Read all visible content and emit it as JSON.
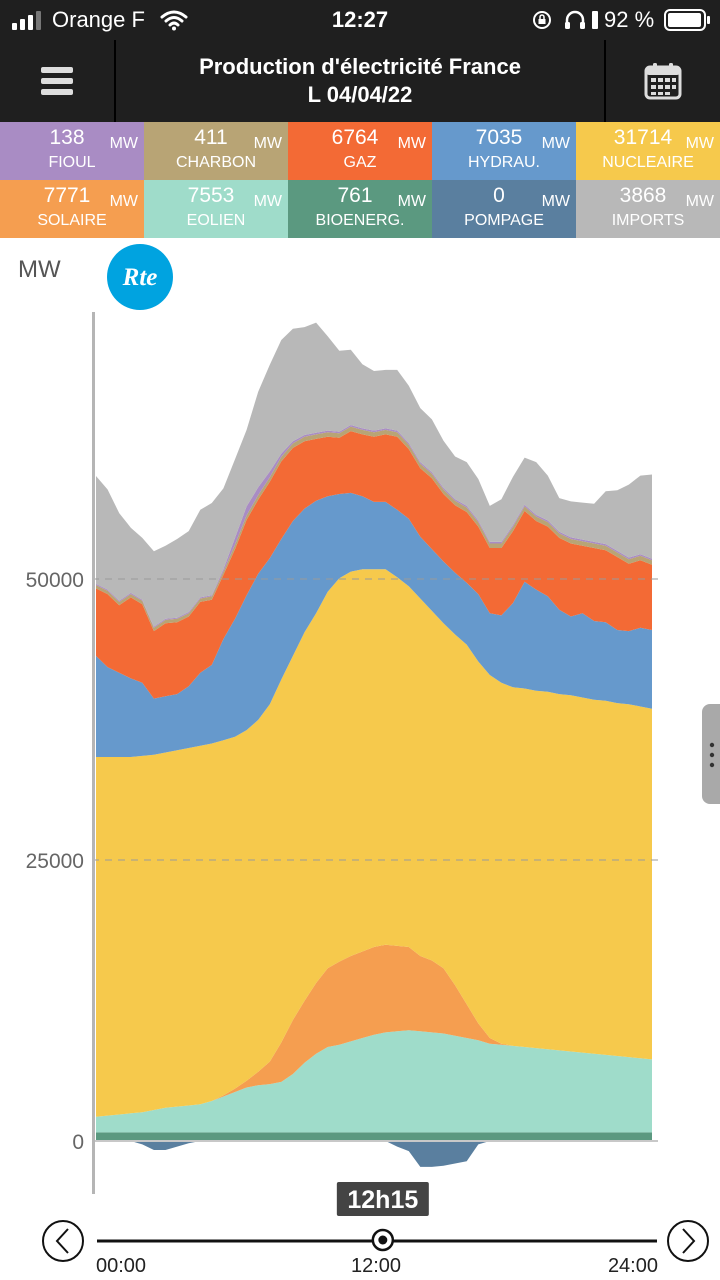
{
  "status_bar": {
    "carrier": "Orange F",
    "time": "12:27",
    "battery": "92 %"
  },
  "header": {
    "title_line1": "Production d'électricité France",
    "title_line2": "L 04/04/22"
  },
  "tiles": [
    {
      "value": "138",
      "unit": "MW",
      "label": "FIOUL",
      "color": "#a98cc4"
    },
    {
      "value": "411",
      "unit": "MW",
      "label": "CHARBON",
      "color": "#b8a475"
    },
    {
      "value": "6764",
      "unit": "MW",
      "label": "GAZ",
      "color": "#f36a35"
    },
    {
      "value": "7035",
      "unit": "MW",
      "label": "HYDRAU.",
      "color": "#6699cc"
    },
    {
      "value": "31714",
      "unit": "MW",
      "label": "NUCLEAIRE",
      "color": "#f6c94c"
    },
    {
      "value": "7771",
      "unit": "MW",
      "label": "SOLAIRE",
      "color": "#f59e50"
    },
    {
      "value": "7553",
      "unit": "MW",
      "label": "EOLIEN",
      "color": "#9fdcca"
    },
    {
      "value": "761",
      "unit": "MW",
      "label": "BIOENERG.",
      "color": "#5b9980"
    },
    {
      "value": "0",
      "unit": "MW",
      "label": "POMPAGE",
      "color": "#5a7f9f"
    },
    {
      "value": "3868",
      "unit": "MW",
      "label": "IMPORTS",
      "color": "#b8b8b8"
    }
  ],
  "logo_text": "Rte",
  "chart_data": {
    "type": "area",
    "ylabel": "MW",
    "yticks": [
      0,
      25000,
      50000
    ],
    "ylim": [
      -3000,
      73000
    ],
    "x_hours": [
      0,
      0.5,
      1,
      1.5,
      2,
      2.5,
      3,
      3.5,
      4,
      4.5,
      5,
      5.5,
      6,
      6.5,
      7,
      7.5,
      8,
      8.5,
      9,
      9.5,
      10,
      10.5,
      11,
      11.5,
      12,
      12.5,
      13,
      13.5,
      14,
      14.5,
      15,
      15.5,
      16,
      16.5,
      17,
      17.5,
      18,
      18.5,
      19,
      19.5,
      20,
      20.5,
      21,
      21.5,
      22,
      22.5,
      23,
      23.5,
      24
    ],
    "pompage_negative": [
      0,
      0,
      0,
      0,
      -300,
      -800,
      -800,
      -500,
      -200,
      0,
      0,
      0,
      0,
      0,
      0,
      0,
      0,
      0,
      0,
      0,
      0,
      0,
      0,
      0,
      0,
      0,
      -500,
      -900,
      -2300,
      -2300,
      -2200,
      -2000,
      -1800,
      -300,
      0,
      0,
      0,
      0,
      0,
      0,
      0,
      0,
      0,
      0,
      0,
      0,
      0,
      0,
      0
    ],
    "series": [
      {
        "name": "BIOENERG.",
        "color": "#5b9980",
        "values": [
          761,
          761,
          761,
          761,
          761,
          761,
          761,
          761,
          761,
          761,
          761,
          761,
          761,
          761,
          761,
          761,
          761,
          761,
          761,
          761,
          761,
          761,
          761,
          761,
          761,
          761,
          761,
          761,
          761,
          761,
          761,
          761,
          761,
          761,
          761,
          761,
          761,
          761,
          761,
          761,
          761,
          761,
          761,
          761,
          761,
          761,
          761,
          761,
          761
        ]
      },
      {
        "name": "EOLIEN",
        "color": "#9fdcca",
        "values": [
          1400,
          1500,
          1600,
          1700,
          1800,
          2000,
          2200,
          2300,
          2400,
          2500,
          2800,
          3200,
          3600,
          4000,
          4200,
          4300,
          4500,
          5200,
          6200,
          7000,
          7600,
          7800,
          8100,
          8400,
          8700,
          8900,
          9000,
          9100,
          9000,
          8900,
          8800,
          8600,
          8400,
          8200,
          7900,
          7800,
          7700,
          7600,
          7500,
          7400,
          7300,
          7200,
          7100,
          7000,
          6900,
          6800,
          6700,
          6600,
          6500
        ]
      },
      {
        "name": "SOLAIRE",
        "color": "#f59e50",
        "values": [
          0,
          0,
          0,
          0,
          0,
          0,
          0,
          0,
          0,
          0,
          0,
          100,
          300,
          600,
          1200,
          2000,
          3500,
          4800,
          5500,
          6300,
          7000,
          7400,
          7600,
          7700,
          7800,
          7800,
          7600,
          7400,
          6700,
          6400,
          5800,
          4500,
          3000,
          1500,
          500,
          100,
          0,
          0,
          0,
          0,
          0,
          0,
          0,
          0,
          0,
          0,
          0,
          0,
          0
        ]
      },
      {
        "name": "NUCLEAIRE",
        "color": "#f6c94c",
        "values": [
          32000,
          31900,
          31800,
          31700,
          31700,
          31600,
          31600,
          31700,
          31800,
          31900,
          31800,
          31600,
          31300,
          31200,
          31300,
          31800,
          32300,
          32400,
          32800,
          32900,
          33500,
          34100,
          34200,
          34000,
          33600,
          33400,
          32800,
          32100,
          31800,
          31100,
          30700,
          31200,
          32000,
          32200,
          32300,
          32100,
          31900,
          31900,
          31800,
          31800,
          31700,
          31700,
          31600,
          31500,
          31500,
          31400,
          31400,
          31300,
          31200
        ]
      },
      {
        "name": "HYDRAU.",
        "color": "#6699cc",
        "values": [
          9000,
          8000,
          7500,
          7000,
          6500,
          5000,
          5000,
          5000,
          5500,
          6500,
          7000,
          9000,
          10500,
          12000,
          13000,
          13000,
          12500,
          12000,
          11000,
          10000,
          8500,
          7500,
          7000,
          6500,
          6000,
          6000,
          6000,
          6000,
          5500,
          5500,
          5500,
          5500,
          5500,
          6000,
          5500,
          6000,
          7500,
          9500,
          9000,
          8500,
          7500,
          7000,
          7500,
          7000,
          7000,
          6500,
          6500,
          7000,
          7000
        ]
      },
      {
        "name": "GAZ",
        "color": "#f36a35",
        "values": [
          6000,
          6500,
          6000,
          7200,
          7000,
          6000,
          6500,
          6400,
          6200,
          6300,
          5800,
          5700,
          6200,
          6700,
          6600,
          6800,
          6900,
          6500,
          6000,
          5500,
          5300,
          5000,
          5500,
          5500,
          5800,
          6000,
          6500,
          6200,
          6100,
          6300,
          6000,
          6000,
          6300,
          6000,
          5800,
          6000,
          6400,
          6300,
          6100,
          6200,
          6400,
          6500,
          6000,
          6500,
          6400,
          6500,
          6000,
          6000,
          5800
        ]
      },
      {
        "name": "CHARBON",
        "color": "#b8a475",
        "values": [
          300,
          300,
          300,
          300,
          300,
          300,
          300,
          300,
          300,
          300,
          300,
          300,
          400,
          400,
          400,
          400,
          400,
          400,
          400,
          400,
          400,
          400,
          400,
          400,
          400,
          400,
          400,
          400,
          400,
          400,
          400,
          400,
          400,
          400,
          400,
          400,
          400,
          400,
          400,
          400,
          400,
          400,
          400,
          400,
          400,
          400,
          400,
          400,
          400
        ]
      },
      {
        "name": "FIOUL",
        "color": "#a98cc4",
        "values": [
          100,
          100,
          100,
          100,
          100,
          100,
          100,
          100,
          100,
          100,
          100,
          200,
          600,
          800,
          700,
          500,
          300,
          200,
          150,
          150,
          140,
          140,
          140,
          140,
          140,
          140,
          140,
          140,
          140,
          140,
          140,
          140,
          140,
          140,
          140,
          140,
          140,
          140,
          140,
          140,
          140,
          140,
          140,
          140,
          140,
          140,
          140,
          140,
          140
        ]
      },
      {
        "name": "IMPORTS",
        "color": "#b8b8b8",
        "values": [
          9600,
          8900,
          7800,
          5800,
          5500,
          6700,
          6500,
          7000,
          7200,
          7800,
          8200,
          7200,
          7000,
          6800,
          8500,
          9500,
          10100,
          10000,
          9600,
          9800,
          8400,
          7200,
          6700,
          5700,
          5300,
          5200,
          5400,
          5100,
          4800,
          4700,
          4200,
          3800,
          3900,
          3700,
          3200,
          3800,
          4300,
          4200,
          4700,
          4000,
          3000,
          3200,
          3300,
          3400,
          4700,
          5400,
          6500,
          7000,
          7500
        ]
      }
    ]
  },
  "timeline": {
    "current_label": "12h15",
    "current_hour": 12.25,
    "ticks": [
      "00:00",
      "12:00",
      "24:00"
    ]
  },
  "icons": {
    "menu": "hamburger-menu-icon",
    "calendar": "calendar-icon",
    "prev": "chevron-left-icon",
    "next": "chevron-right-icon",
    "handle": "vertical-dots-icon"
  }
}
